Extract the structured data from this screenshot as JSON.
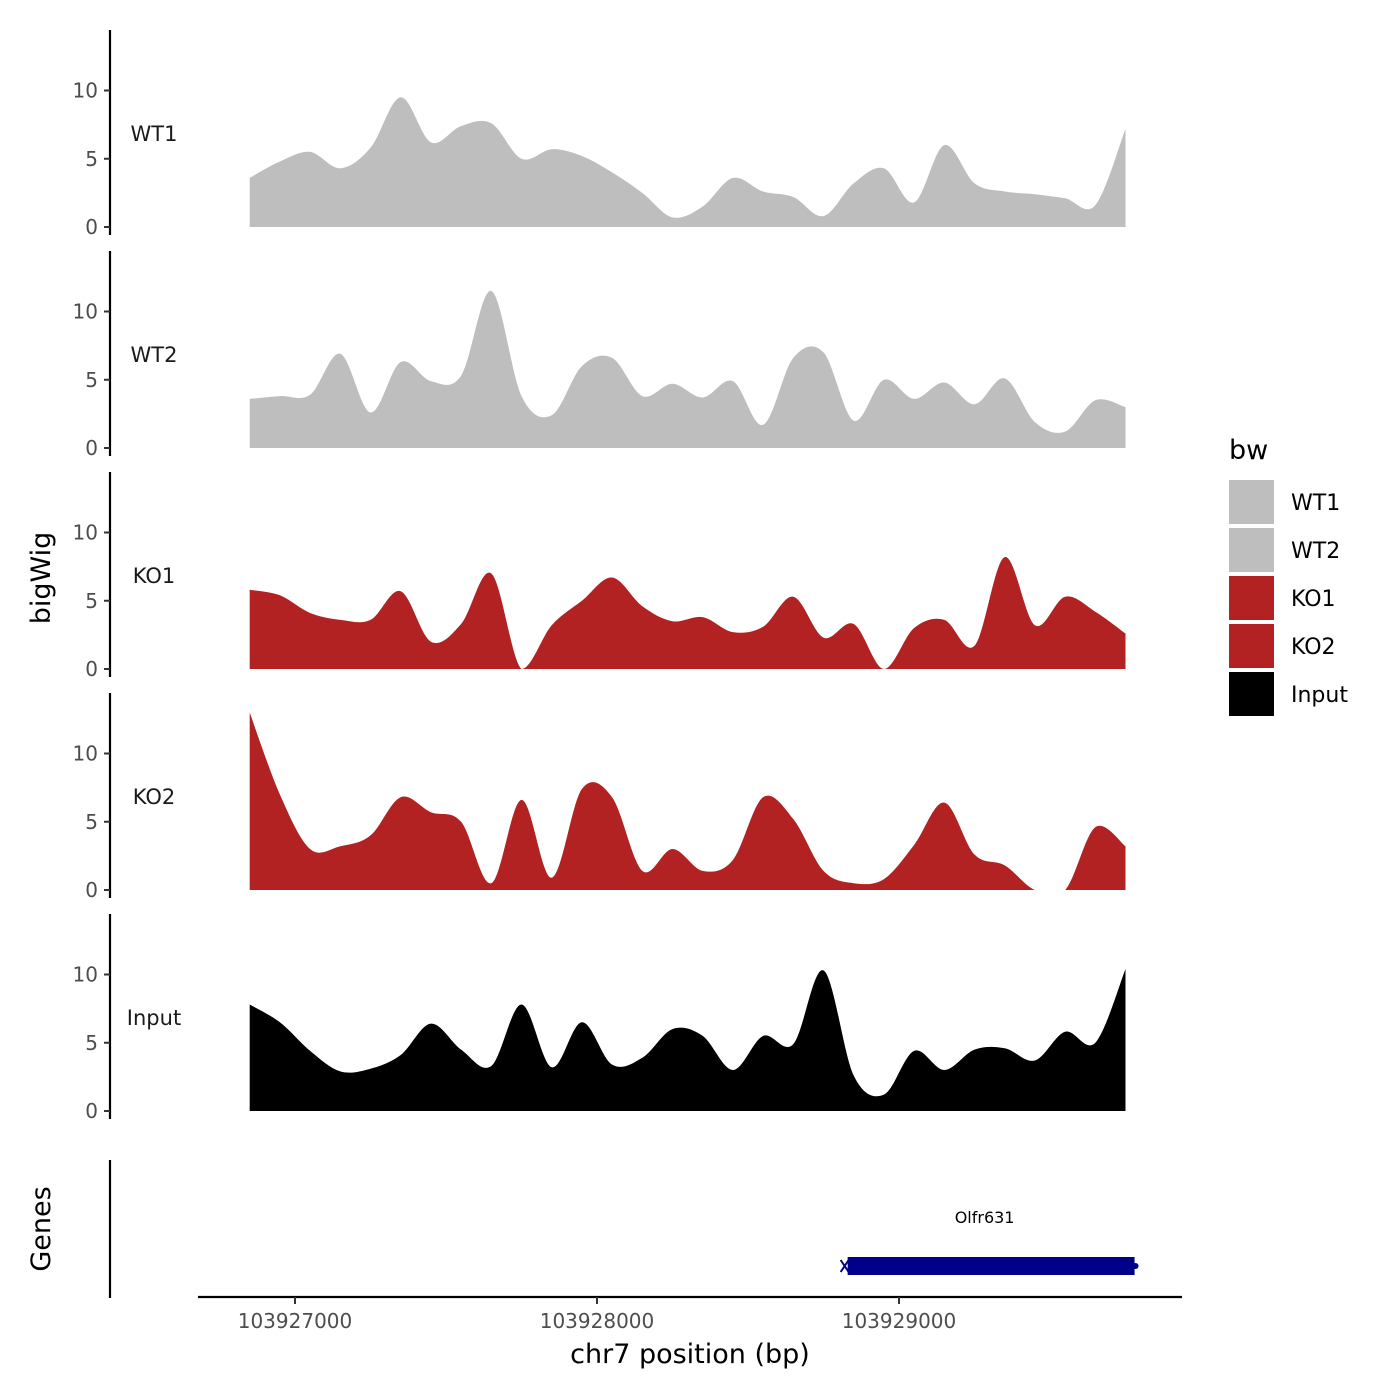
{
  "y_axis_title": "bigWig",
  "genes_title": "Genes",
  "x_axis_title": "chr7 position (bp)",
  "legend": {
    "title": "bw",
    "items": [
      {
        "label": "WT1",
        "color": "#bebebe"
      },
      {
        "label": "WT2",
        "color": "#bebebe"
      },
      {
        "label": "KO1",
        "color": "#b22222"
      },
      {
        "label": "KO2",
        "color": "#b22222"
      },
      {
        "label": "Input",
        "color": "#000000"
      }
    ]
  },
  "chart_data": {
    "type": "area",
    "xlabel": "chr7 position (bp)",
    "ylabel": "bigWig",
    "xlim": [
      103926700,
      103929930
    ],
    "ylim": [
      0,
      14
    ],
    "x_ticks": [
      103927000,
      103928000,
      103929000
    ],
    "x_tick_labels": [
      "103927000",
      "103928000",
      "103929000"
    ],
    "y_ticks": [
      0,
      5,
      10
    ],
    "y_tick_labels": [
      "0",
      "5",
      "10"
    ],
    "x": [
      103926850,
      103926950,
      103927050,
      103927150,
      103927250,
      103927350,
      103927450,
      103927550,
      103927650,
      103927750,
      103927850,
      103927950,
      103928050,
      103928150,
      103928250,
      103928350,
      103928450,
      103928550,
      103928650,
      103928750,
      103928850,
      103928950,
      103929050,
      103929150,
      103929250,
      103929350,
      103929450,
      103929550,
      103929650,
      103929750
    ],
    "series": [
      {
        "name": "WT1",
        "color": "#bebebe",
        "values": [
          3.6,
          4.8,
          5.5,
          4.3,
          5.8,
          9.5,
          6.2,
          7.4,
          7.6,
          5.0,
          5.7,
          5.2,
          4.0,
          2.5,
          0.7,
          1.5,
          3.6,
          2.6,
          2.2,
          0.8,
          3.2,
          4.3,
          1.8,
          6.0,
          3.2,
          2.6,
          2.4,
          2.1,
          1.6,
          7.2
        ]
      },
      {
        "name": "WT2",
        "color": "#bebebe",
        "values": [
          3.6,
          3.8,
          3.9,
          6.9,
          2.6,
          6.3,
          4.9,
          5.3,
          11.5,
          3.8,
          2.4,
          6.0,
          6.6,
          3.8,
          4.7,
          3.7,
          4.9,
          1.7,
          6.6,
          7.0,
          2.0,
          5.0,
          3.6,
          4.8,
          3.2,
          5.1,
          1.9,
          1.2,
          3.5,
          3.0
        ]
      },
      {
        "name": "KO1",
        "color": "#b22222",
        "values": [
          5.8,
          5.4,
          4.1,
          3.6,
          3.6,
          5.7,
          2.0,
          3.3,
          7.0,
          0.0,
          3.2,
          5.0,
          6.7,
          4.6,
          3.5,
          3.8,
          2.7,
          3.1,
          5.3,
          2.3,
          3.3,
          0.0,
          3.0,
          3.6,
          1.7,
          8.2,
          3.2,
          5.3,
          4.2,
          2.6
        ]
      },
      {
        "name": "KO2",
        "color": "#b22222",
        "values": [
          13.0,
          7.0,
          3.0,
          3.2,
          4.0,
          6.8,
          5.7,
          5.0,
          0.5,
          6.6,
          0.9,
          7.4,
          6.8,
          1.4,
          3.0,
          1.4,
          2.2,
          6.8,
          5.2,
          1.4,
          0.5,
          0.8,
          3.3,
          6.4,
          2.6,
          1.8,
          0.0,
          0.0,
          4.6,
          3.2
        ]
      },
      {
        "name": "Input",
        "color": "#000000",
        "values": [
          7.8,
          6.5,
          4.4,
          2.9,
          3.1,
          4.1,
          6.4,
          4.5,
          3.3,
          7.8,
          3.2,
          6.5,
          3.4,
          3.9,
          6.0,
          5.5,
          3.0,
          5.5,
          4.9,
          10.3,
          2.6,
          1.2,
          4.4,
          3.0,
          4.5,
          4.6,
          3.7,
          5.8,
          5.0,
          10.4
        ]
      }
    ],
    "genes": [
      {
        "name": "Olfr631",
        "start": 103928820,
        "end": 103929780,
        "strand": "+",
        "color": "#00008b"
      }
    ],
    "legend_position": "right"
  }
}
